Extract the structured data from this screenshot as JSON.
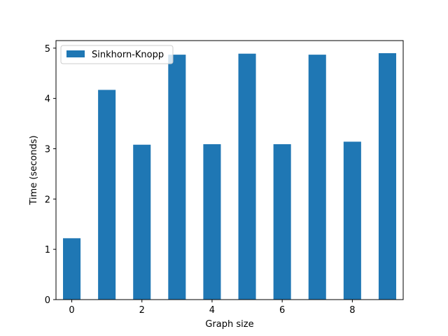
{
  "chart_data": {
    "type": "bar",
    "x": [
      0,
      1,
      2,
      3,
      4,
      5,
      6,
      7,
      8,
      9
    ],
    "series": [
      {
        "name": "Sinkhorn-Knopp",
        "color": "#1f77b4",
        "values": [
          1.22,
          4.17,
          3.08,
          4.87,
          3.09,
          4.89,
          3.09,
          4.87,
          3.14,
          4.9
        ]
      }
    ],
    "xlabel": "Graph size",
    "ylabel": "Time (seconds)",
    "xlim": [
      -0.45,
      9.45
    ],
    "ylim": [
      0,
      5.15
    ],
    "xticks": [
      0,
      2,
      4,
      6,
      8
    ],
    "yticks": [
      0,
      1,
      2,
      3,
      4,
      5
    ],
    "bar_width": 0.5,
    "legend": "top-left",
    "grid": false
  }
}
